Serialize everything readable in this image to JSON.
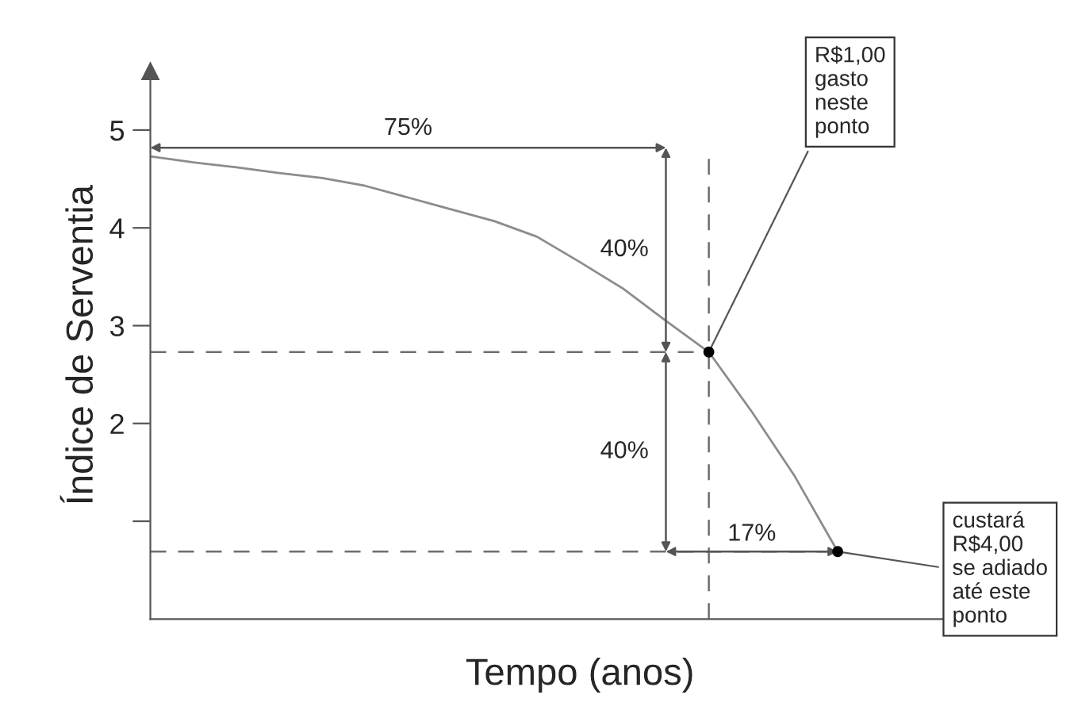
{
  "chart_data": {
    "type": "line",
    "xlabel": "Tempo (anos)",
    "ylabel": "Índice de Serventia",
    "categories": [
      null,
      null,
      null,
      null,
      null,
      null,
      null,
      null,
      null,
      null,
      null,
      null,
      null,
      null,
      null,
      null,
      null
    ],
    "series": [
      {
        "color": "#8c8c8c",
        "values": [
          4.73,
          4.67,
          4.62,
          4.56,
          4.51,
          4.43,
          4.31,
          4.19,
          4.07,
          3.91,
          3.65,
          3.38,
          3.05,
          2.73,
          2.12,
          1.46,
          0.69
        ]
      }
    ],
    "ylim": [
      0,
      5.6
    ],
    "yticks": [
      {
        "value": 1,
        "label": null
      },
      2,
      3,
      4,
      5
    ],
    "ref_lines": [
      {
        "axis": "y",
        "value": 2.73,
        "line_style": "dashed",
        "color": "#6e6e6e"
      },
      {
        "axis": "y",
        "value": 0.69,
        "line_style": "dashed",
        "color": "#6e6e6e"
      }
    ],
    "annotations": [
      "75%",
      "40%",
      "40%",
      "17%",
      "R$1,00\ngasto\nneste\nponto",
      "custará\nR$4,00\nse adiado\naté este\nponto"
    ],
    "grid": false,
    "legend": false,
    "marker": "none",
    "line_style": "solid"
  }
}
